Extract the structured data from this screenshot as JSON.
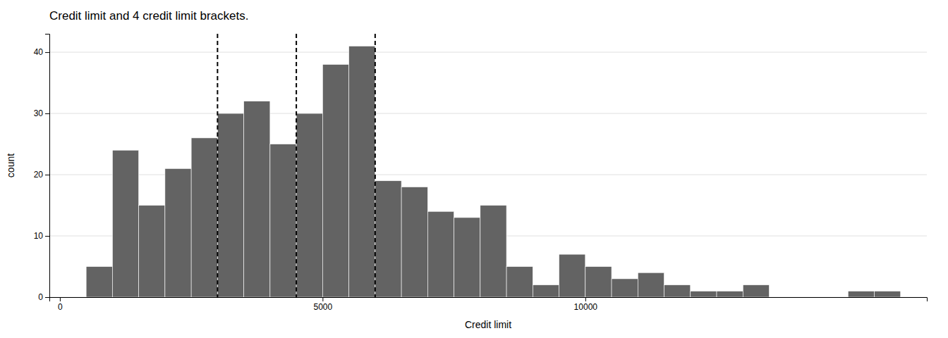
{
  "chart_data": {
    "type": "histogram",
    "title": "Credit limit and 4 credit limit brackets.",
    "x_label": "Credit limit",
    "y_label": "count",
    "series": [
      {
        "type": "bar",
        "color": "#636363",
        "bins": [
          500,
          1000,
          1500,
          2000,
          2500,
          3000,
          3500,
          4000,
          4500,
          5000,
          5500,
          6000,
          6500,
          7000,
          7500,
          8000,
          8500,
          9000,
          9500,
          10000,
          10500,
          11000,
          11500,
          12000,
          12500,
          13000,
          13500
        ],
        "values": [
          5,
          24,
          15,
          21,
          26,
          30,
          32,
          25,
          30,
          38,
          41,
          19,
          18,
          14,
          13,
          15,
          5,
          2,
          7,
          5,
          3,
          4,
          2,
          1,
          1,
          2
        ]
      },
      {
        "type": "bar",
        "color": "#636363",
        "bins": [
          15000,
          15500,
          16000
        ],
        "values": [
          1,
          1
        ]
      },
      {
        "type": "vline",
        "color": "black",
        "line_style": "dashed",
        "x": [
          3000,
          4500,
          6000
        ]
      }
    ],
    "xlim": [
      -200,
      16500
    ],
    "xticks": [
      0,
      5000,
      10000
    ],
    "ylim": [
      0,
      43
    ],
    "yticks": [
      0,
      10,
      20,
      30,
      40
    ],
    "grid": true
  }
}
